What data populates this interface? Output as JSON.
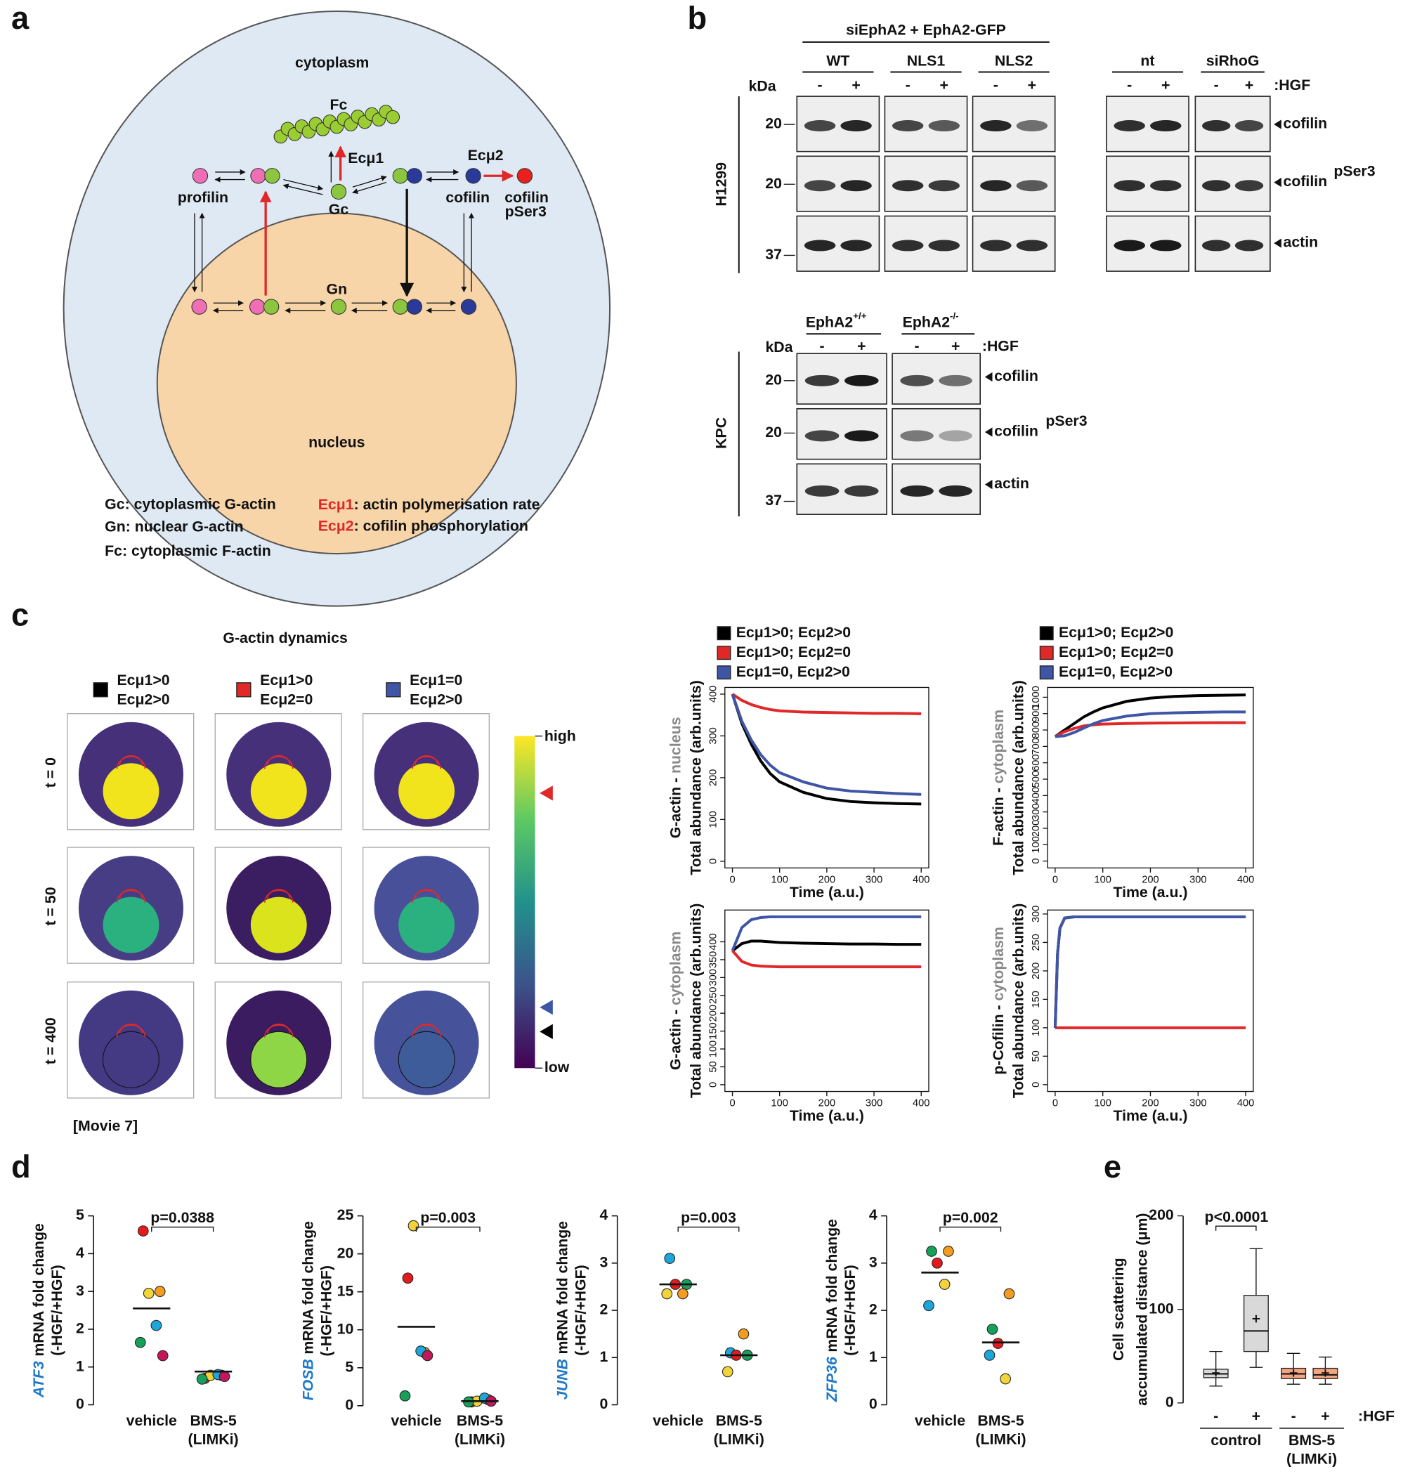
{
  "panel_a": {
    "label": "a",
    "cytoplasm": "cytoplasm",
    "nucleus": "nucleus",
    "fc": "Fc",
    "ecmu1": "Ecμ1",
    "ecmu2": "Ecμ2",
    "profilin": "profilin",
    "gc": "Gc",
    "cofilin": "cofilin",
    "cofilin_p": "cofilin",
    "pser3": "pSer3",
    "gn": "Gn",
    "legend": {
      "gc": "Gc: cytoplasmic G-actin",
      "gn": "Gn: nuclear G-actin",
      "fc": "Fc: cytoplasmic F-actin",
      "e1": "Ecμ1",
      "e1_text": ": actin polymerisation rate",
      "e2": "Ecμ2",
      "e2_text": ": cofilin phosphorylation"
    }
  },
  "panel_b": {
    "label": "b",
    "h1299": {
      "construct": "siEphA2 + EphA2-GFP",
      "groups": [
        "WT",
        "NLS1",
        "NLS2",
        "nt",
        "siRhoG"
      ],
      "kda": "kDa",
      "lanes": [
        "-",
        "+",
        "-",
        "+",
        "-",
        "+",
        "-",
        "+",
        "-",
        "+"
      ],
      "treatment": ":HGF",
      "markers": [
        20,
        20,
        37
      ],
      "cell_line": "H1299",
      "proteins": [
        "cofilin",
        "cofilin",
        "actin"
      ],
      "superscript": "pSer3"
    },
    "kpc": {
      "groups": [
        "EphA2",
        "EphA2"
      ],
      "genotypes": [
        "+/+",
        "-/-"
      ],
      "kda": "kDa",
      "lanes": [
        "-",
        "+",
        "-",
        "+"
      ],
      "treatment": ":HGF",
      "markers": [
        20,
        20,
        37
      ],
      "cell_line": "KPC",
      "proteins": [
        "cofilin",
        "cofilin",
        "actin"
      ],
      "superscript": "pSer3"
    }
  },
  "panel_c": {
    "label": "c",
    "title": "G-actin dynamics",
    "conditions": [
      {
        "line1": "Ecμ1>0",
        "line2": "Ecμ2>0",
        "color": "#000000"
      },
      {
        "line1": "Ecμ1>0",
        "line2": "Ecμ2=0",
        "color": "#e02828"
      },
      {
        "line1": "Ecμ1=0",
        "line2": "Ecμ2>0",
        "color": "#3f55a5"
      }
    ],
    "times": [
      "t = 0",
      "t = 50",
      "t = 400"
    ],
    "maps": [
      [
        {
          "cyto": "#46307a",
          "nuc": "#f1e31c"
        },
        {
          "cyto": "#46307a",
          "nuc": "#f1e31c"
        },
        {
          "cyto": "#46307a",
          "nuc": "#f1e31c"
        }
      ],
      [
        {
          "cyto": "#463d84",
          "nuc": "#2bb07f"
        },
        {
          "cyto": "#3b1d62",
          "nuc": "#dbe31c"
        },
        {
          "cyto": "#48509a",
          "nuc": "#2bb07f"
        }
      ],
      [
        {
          "cyto": "#443a83",
          "nuc": "#443a83"
        },
        {
          "cyto": "#3b1c60",
          "nuc": "#8ed645"
        },
        {
          "cyto": "#46539a",
          "nuc": "#3e5c9a"
        }
      ]
    ],
    "colorbar": {
      "high": "high",
      "low": "low",
      "colors": [
        "#fde725",
        "#5ec962",
        "#21918c",
        "#3b528b",
        "#440154"
      ]
    },
    "movie": "[Movie 7]"
  },
  "panel_labels": {
    "d": "d",
    "e": "e"
  },
  "chart_data": [
    {
      "type": "line",
      "ylabel": [
        "G-actin - ",
        "nucleus"
      ],
      "ylabel_colors": [
        "#111111",
        "#888888"
      ],
      "ylabel2": "Total abundance (arb.units)",
      "xlabel": "Time (a.u.)",
      "legend": true,
      "x": [
        0,
        20,
        40,
        60,
        80,
        100,
        150,
        200,
        250,
        300,
        350,
        400
      ],
      "series": [
        {
          "name": "Ecμ1>0; Ecμ2>0",
          "color": "#000000",
          "values": [
            400,
            330,
            280,
            240,
            210,
            190,
            165,
            150,
            143,
            140,
            138,
            137
          ]
        },
        {
          "name": "Ecμ1>0; Ecμ2=0",
          "color": "#e02828",
          "values": [
            400,
            385,
            375,
            368,
            363,
            360,
            357,
            356,
            355,
            354,
            354,
            353
          ]
        },
        {
          "name": "Ecμ1=0, Ecμ2>0",
          "color": "#3f55a5",
          "values": [
            400,
            335,
            290,
            255,
            230,
            212,
            190,
            175,
            168,
            165,
            162,
            160
          ]
        }
      ],
      "xlim": [
        -16,
        416
      ],
      "xticks": [
        0,
        100,
        200,
        300,
        400
      ],
      "ylim": [
        -16,
        416
      ],
      "yticks": [
        0,
        100,
        200,
        300,
        400
      ]
    },
    {
      "type": "line",
      "ylabel": [
        "F-actin - ",
        "cytoplasm"
      ],
      "ylabel_colors": [
        "#111111",
        "#888888"
      ],
      "ylabel2": "Total abundance (arb.units)",
      "xlabel": "Time (a.u.)",
      "legend": true,
      "x": [
        0,
        20,
        40,
        60,
        80,
        100,
        150,
        200,
        250,
        300,
        350,
        400
      ],
      "series": [
        {
          "name": "Ecμ1>0; Ecμ2>0",
          "color": "#000000",
          "values": [
            760,
            800,
            840,
            880,
            910,
            935,
            975,
            995,
            1005,
            1010,
            1012,
            1014
          ]
        },
        {
          "name": "Ecμ1>0; Ecμ2=0",
          "color": "#e02828",
          "values": [
            760,
            790,
            810,
            825,
            832,
            836,
            840,
            842,
            843,
            844,
            845,
            845
          ]
        },
        {
          "name": "Ecμ1=0, Ecμ2>0",
          "color": "#3f55a5",
          "values": [
            760,
            765,
            785,
            812,
            838,
            858,
            885,
            900,
            905,
            908,
            910,
            910
          ]
        }
      ],
      "xlim": [
        -16,
        416
      ],
      "xticks": [
        0,
        100,
        200,
        300,
        400
      ],
      "ylim": [
        -42,
        1060
      ],
      "yticks": [
        0,
        100,
        200,
        300,
        400,
        500,
        600,
        700,
        800,
        900,
        1000
      ]
    },
    {
      "type": "line",
      "ylabel": [
        "G-actin - ",
        "cytoplasm"
      ],
      "ylabel_colors": [
        "#111111",
        "#888888"
      ],
      "ylabel2": "Total abundance (arb.units)",
      "xlabel": "Time (a.u.)",
      "legend": false,
      "x": [
        0,
        20,
        40,
        60,
        80,
        100,
        150,
        200,
        250,
        300,
        350,
        400
      ],
      "series": [
        {
          "name": "Ecμ1>0; Ecμ2>0",
          "color": "#000000",
          "values": [
            375,
            395,
            402,
            402,
            400,
            398,
            396,
            395,
            394,
            394,
            393,
            393
          ]
        },
        {
          "name": "Ecμ1>0; Ecμ2=0",
          "color": "#e02828",
          "values": [
            375,
            345,
            335,
            332,
            331,
            330,
            330,
            330,
            330,
            330,
            330,
            330
          ]
        },
        {
          "name": "Ecμ1=0, Ecμ2>0",
          "color": "#3f55a5",
          "values": [
            375,
            440,
            462,
            468,
            470,
            470,
            470,
            470,
            470,
            470,
            470,
            470
          ]
        }
      ],
      "xlim": [
        -16,
        416
      ],
      "xticks": [
        0,
        100,
        200,
        300,
        400
      ],
      "ylim": [
        -19,
        489
      ],
      "yticks": [
        0,
        50,
        100,
        150,
        200,
        250,
        300,
        350,
        400
      ]
    },
    {
      "type": "line",
      "ylabel": [
        "p-Cofilin - ",
        "cytoplasm"
      ],
      "ylabel_colors": [
        "#111111",
        "#888888"
      ],
      "ylabel2": "Total abundance (arb.units)",
      "xlabel": "Time (a.u.)",
      "legend": false,
      "x": [
        0,
        5,
        10,
        20,
        40,
        100,
        200,
        300,
        400
      ],
      "series": [
        {
          "name": "Ecμ1>0; Ecμ2>0",
          "color": "#000000",
          "values": [
            100,
            230,
            275,
            293,
            295,
            295,
            295,
            295,
            295
          ]
        },
        {
          "name": "Ecμ1>0; Ecμ2=0",
          "color": "#e02828",
          "values": [
            100,
            100,
            100,
            100,
            100,
            100,
            100,
            100,
            100
          ]
        },
        {
          "name": "Ecμ1=0, Ecμ2>0",
          "color": "#3f55a5",
          "values": [
            100,
            230,
            275,
            293,
            295,
            295,
            295,
            295,
            295
          ]
        }
      ],
      "xlim": [
        -16,
        416
      ],
      "xticks": [
        0,
        100,
        200,
        300,
        400
      ],
      "ylim": [
        -12,
        307
      ],
      "yticks": [
        0,
        50,
        100,
        150,
        200,
        250,
        300
      ]
    },
    {
      "type": "dot",
      "gene": "ATF3",
      "ylabel": "mRNA fold change",
      "ylabel2": "(-HGF/+HGF)",
      "categories": [
        [
          "vehicle"
        ],
        [
          "BMS-5",
          "(LIMKi)"
        ]
      ],
      "point_colors": [
        "#e41a1c",
        "#f39c1f",
        "#f2d43a",
        "#1ca6d9",
        "#16a05a",
        "#c2185b"
      ],
      "values": [
        [
          4.6,
          3.0,
          2.95,
          2.1,
          1.65,
          1.3
        ],
        [
          0.7,
          0.78,
          0.78,
          0.8,
          0.68,
          0.75
        ]
      ],
      "means": [
        2.55,
        0.88
      ],
      "pvalue": "p=0.0388",
      "ylim": [
        0,
        5
      ],
      "yticks": [
        0,
        1,
        2,
        3,
        4,
        5
      ]
    },
    {
      "type": "dot",
      "gene": "FOSB",
      "ylabel": "mRNA fold change",
      "ylabel2": "(-HGF/+HGF)",
      "categories": [
        [
          "vehicle"
        ],
        [
          "BMS-5",
          "(LIMKi)"
        ]
      ],
      "point_colors": [
        "#e41a1c",
        "#f39c1f",
        "#f2d43a",
        "#1ca6d9",
        "#16a05a",
        "#c2185b"
      ],
      "values": [
        [
          16.8,
          7.0,
          23.7,
          7.2,
          1.3,
          6.6
        ],
        [
          0.5,
          0.8,
          0.6,
          1.0,
          0.5,
          0.6
        ]
      ],
      "means": [
        10.4,
        0.6
      ],
      "pvalue": "p=0.003",
      "ylim": [
        0,
        25
      ],
      "yticks": [
        0,
        5,
        10,
        15,
        20,
        25
      ]
    },
    {
      "type": "dot",
      "gene": "JUNB",
      "ylabel": "mRNA fold change",
      "ylabel2": "(-HGF/+HGF)",
      "categories": [
        [
          "vehicle"
        ],
        [
          "BMS-5",
          "(LIMKi)"
        ]
      ],
      "point_colors": [
        "#1ca6d9",
        "#16a05a",
        "#e41a1c",
        "#f39c1f",
        "#f2d43a"
      ],
      "values": [
        [
          3.1,
          2.55,
          2.55,
          2.35,
          2.35
        ],
        [
          1.1,
          1.05,
          1.05,
          1.5,
          0.7
        ]
      ],
      "means": [
        2.55,
        1.05
      ],
      "pvalue": "p=0.003",
      "ylim": [
        0,
        4
      ],
      "yticks": [
        0,
        1,
        2,
        3,
        4
      ]
    },
    {
      "type": "dot",
      "gene": "ZFP36",
      "ylabel": "mRNA fold change",
      "ylabel2": "(-HGF/+HGF)",
      "categories": [
        [
          "vehicle"
        ],
        [
          "BMS-5",
          "(LIMKi)"
        ]
      ],
      "point_colors": [
        "#16a05a",
        "#f39c1f",
        "#e41a1c",
        "#f2d43a",
        "#1ca6d9"
      ],
      "values": [
        [
          3.25,
          3.25,
          3.0,
          2.55,
          2.1
        ],
        [
          1.6,
          2.35,
          1.3,
          0.55,
          1.05
        ]
      ],
      "means": [
        2.8,
        1.32
      ],
      "pvalue": "p=0.002",
      "ylim": [
        0,
        4
      ],
      "yticks": [
        0,
        1,
        2,
        3,
        4
      ]
    },
    {
      "type": "box",
      "ylabel": "Cell scattering",
      "ylabel2": "accumulated distance (μm)",
      "categories": [
        "-",
        "+",
        "-",
        "+"
      ],
      "treatment": ":HGF",
      "groups": [
        [
          "control"
        ],
        [
          "BMS-5",
          "(LIMKi)"
        ]
      ],
      "colors": [
        "#d9d9d9",
        "#d9d9d9",
        "#f4a582",
        "#f4a582"
      ],
      "boxes": [
        {
          "whislo": 18,
          "q1": 27,
          "med": 31,
          "q3": 36,
          "whishi": 55,
          "mean": 32
        },
        {
          "whislo": 38,
          "q1": 55,
          "med": 77,
          "q3": 115,
          "whishi": 165,
          "mean": 90
        },
        {
          "whislo": 20,
          "q1": 26,
          "med": 31,
          "q3": 37,
          "whishi": 53,
          "mean": 32
        },
        {
          "whislo": 20,
          "q1": 26,
          "med": 30,
          "q3": 37,
          "whishi": 49,
          "mean": 32
        }
      ],
      "pvalue": "p<0.0001",
      "ylim": [
        0,
        200
      ],
      "yticks": [
        0,
        100,
        200
      ]
    }
  ]
}
